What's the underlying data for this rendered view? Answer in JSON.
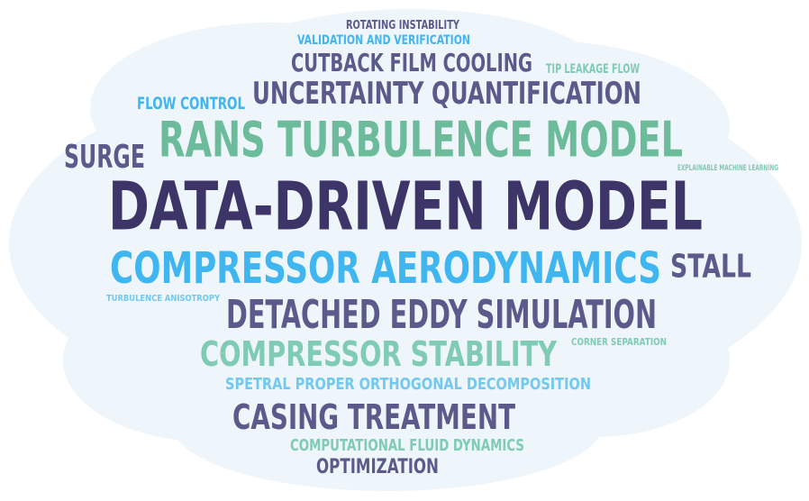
{
  "colors": {
    "dark_purple": "#3d3567",
    "slate_purple": "#5b5a8a",
    "teal": "#6cbb9a",
    "sky_blue": "#3fb6f0",
    "light_teal": "#7fcbb4",
    "light_blue": "#73c8ef",
    "cloud": "#eef5fb"
  },
  "words": {
    "rotating_instability": "ROTATING INSTABILITY",
    "validation_and_verification": "VALIDATION AND VERIFICATION",
    "cutback_film_cooling": "CUTBACK FILM COOLING",
    "tip_leakage_flow": "TIP LEAKAGE FLOW",
    "flow_control": "FLOW CONTROL",
    "uncertainty_quantification": "UNCERTAINTY QUANTIFICATION",
    "surge": "SURGE",
    "rans_turbulence_model": "RANS TURBULENCE MODEL",
    "explainable_machine_learning": "EXPLAINABLE MACHINE LEARNING",
    "data_driven_model": "DATA-DRIVEN MODEL",
    "compressor_aerodynamics": "COMPRESSOR AERODYNAMICS",
    "stall": "STALL",
    "turbulence_anisotropy": "TURBULENCE ANISOTROPY",
    "detached_eddy_simulation": "DETACHED EDDY SIMULATION",
    "compressor_stability": "COMPRESSOR STABILITY",
    "corner_separation": "CORNER SEPARATION",
    "spetral_pod": "SPETRAL PROPER ORTHOGONAL DECOMPOSITION",
    "casing_treatment": "CASING TREATMENT",
    "computational_fluid_dynamics": "COMPUTATIONAL FLUID DYNAMICS",
    "optimization": "OPTIMIZATION"
  }
}
